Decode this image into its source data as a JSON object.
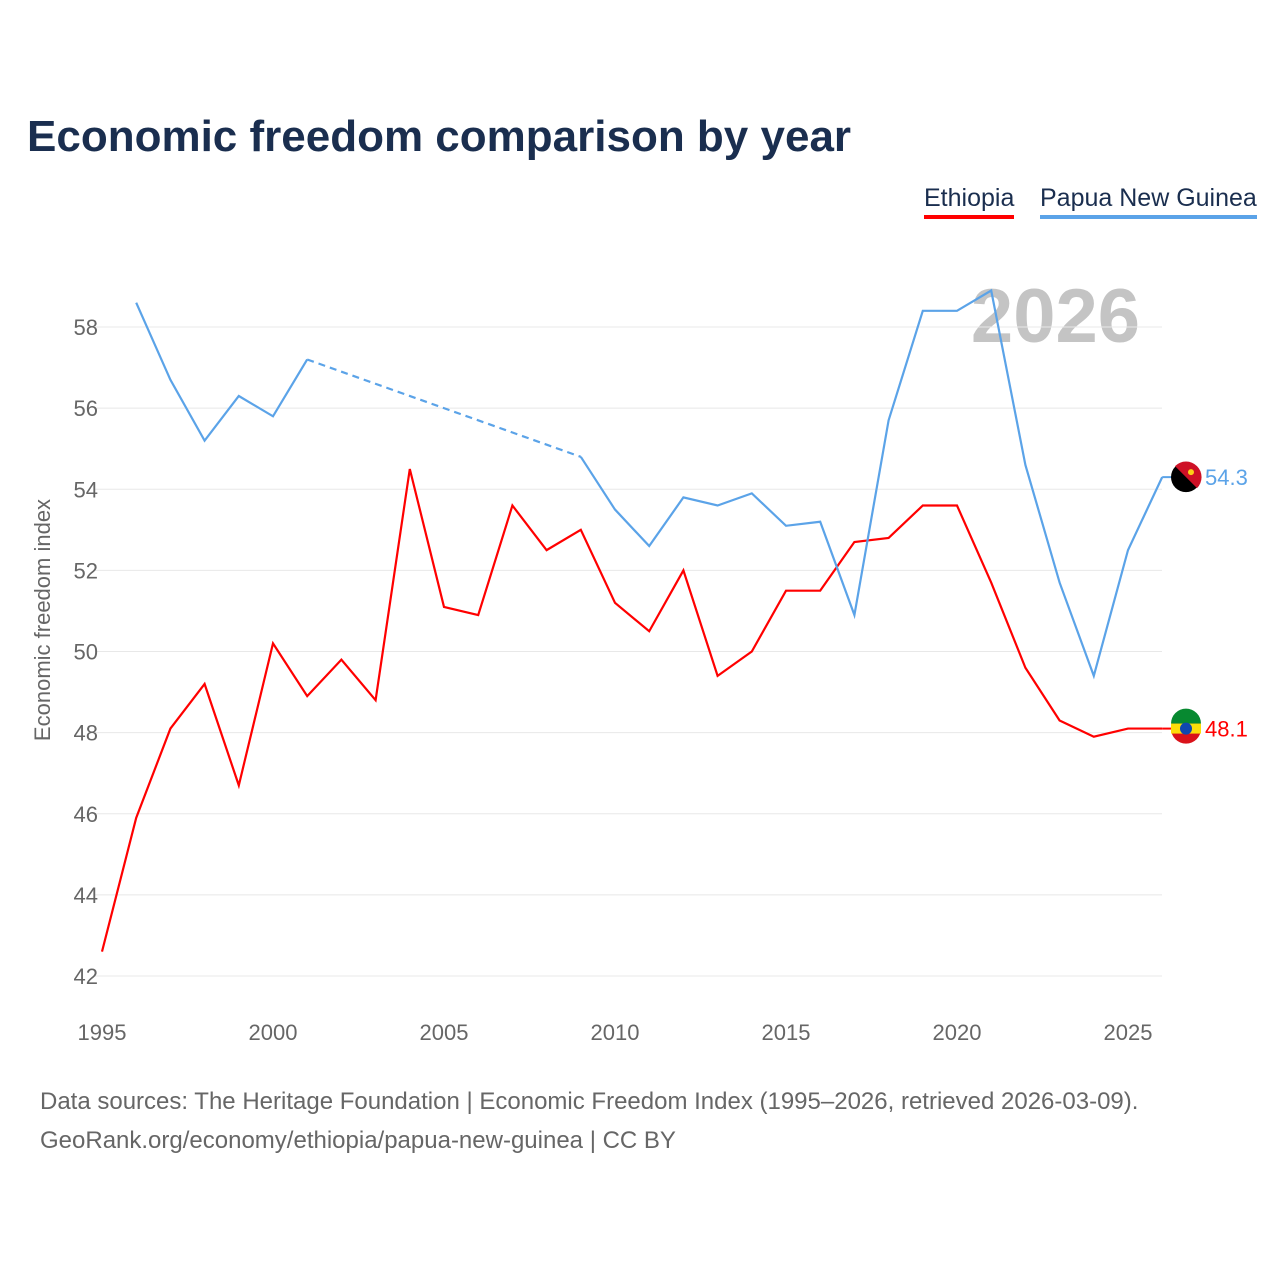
{
  "chart_data": {
    "type": "line",
    "title": "Economic freedom comparison by year",
    "xlabel": "",
    "ylabel": "Economic freedom index",
    "xlim": [
      1995,
      2026
    ],
    "ylim": [
      42,
      59
    ],
    "x_ticks": [
      1995,
      2000,
      2005,
      2010,
      2015,
      2020,
      2025
    ],
    "y_ticks": [
      42,
      44,
      46,
      48,
      50,
      52,
      54,
      56,
      58
    ],
    "grid": true,
    "legend_position": "top-right",
    "watermark_year": "2026",
    "x": [
      1995,
      1996,
      1997,
      1998,
      1999,
      2000,
      2001,
      2002,
      2003,
      2004,
      2005,
      2006,
      2007,
      2008,
      2009,
      2010,
      2011,
      2012,
      2013,
      2014,
      2015,
      2016,
      2017,
      2018,
      2019,
      2020,
      2021,
      2022,
      2023,
      2024,
      2025,
      2026
    ],
    "series": [
      {
        "name": "Ethiopia",
        "color": "#ff0000",
        "end_label": "48.1",
        "values": [
          42.6,
          45.9,
          48.1,
          49.2,
          46.7,
          50.2,
          48.9,
          49.8,
          48.8,
          54.5,
          51.1,
          50.9,
          53.6,
          52.5,
          53.0,
          51.2,
          50.5,
          52.0,
          49.4,
          50.0,
          51.5,
          51.5,
          52.7,
          52.8,
          53.6,
          53.6,
          51.7,
          49.6,
          48.3,
          47.9,
          48.1,
          48.1
        ]
      },
      {
        "name": "Papua New Guinea",
        "color": "#5ba3e8",
        "end_label": "54.3",
        "values": [
          null,
          58.6,
          56.7,
          55.2,
          56.3,
          55.8,
          57.2,
          null,
          null,
          null,
          null,
          null,
          null,
          null,
          54.8,
          53.5,
          52.6,
          53.8,
          53.6,
          53.9,
          53.1,
          53.2,
          50.9,
          55.7,
          58.4,
          58.4,
          58.9,
          54.6,
          51.7,
          49.4,
          52.5,
          54.3
        ]
      }
    ]
  },
  "footer": {
    "line1": "Data sources: The Heritage Foundation | Economic Freedom Index (1995–2026, retrieved 2026-03-09).",
    "line2": "GeoRank.org/economy/ethiopia/papua-new-guinea | CC BY"
  }
}
